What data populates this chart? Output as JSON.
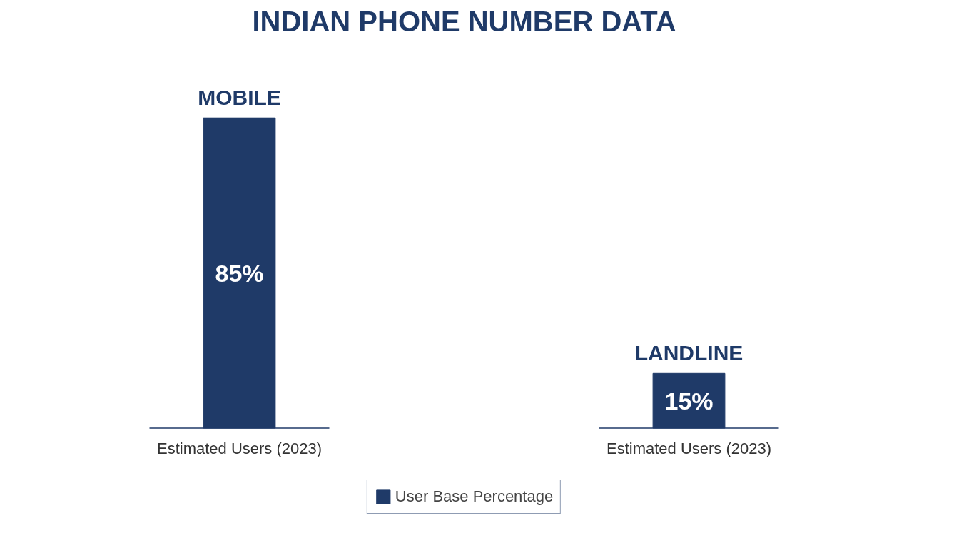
{
  "chart_data": {
    "type": "bar",
    "title": "INDIAN PHONE NUMBER DATA",
    "categories": [
      "MOBILE",
      "LANDLINE"
    ],
    "xlabel": "Estimated Users (2023)",
    "series": [
      {
        "name": "User Base Percentage",
        "color": "#1f3a68",
        "values": [
          85,
          15
        ],
        "value_labels": [
          "85%",
          "15%"
        ]
      }
    ],
    "legend": "bottom",
    "grid": false
  }
}
